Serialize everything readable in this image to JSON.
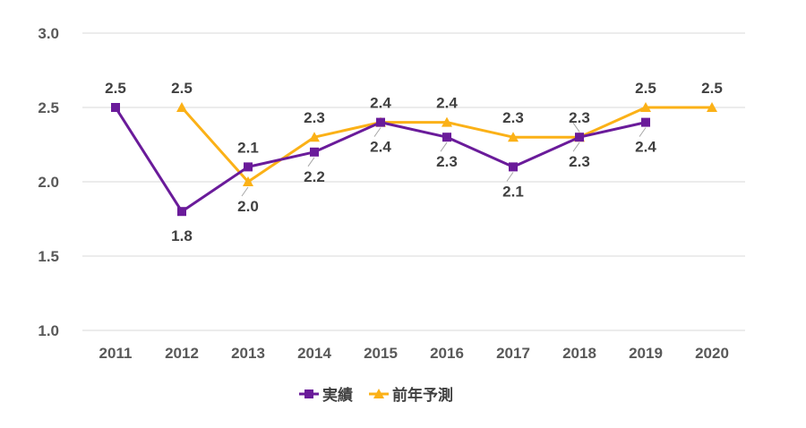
{
  "chart_data": {
    "type": "line",
    "title": "",
    "xlabel": "",
    "ylabel": "",
    "categories": [
      "2011",
      "2012",
      "2013",
      "2014",
      "2015",
      "2016",
      "2017",
      "2018",
      "2019",
      "2020"
    ],
    "ylim": [
      1.0,
      3.0
    ],
    "yticks": [
      "1.0",
      "1.5",
      "2.0",
      "2.5",
      "3.0"
    ],
    "grid": true,
    "legend_position": "bottom",
    "series": [
      {
        "name": "実績",
        "color": "#6a1b9a",
        "marker": "square",
        "values": [
          2.5,
          1.8,
          2.1,
          2.2,
          2.4,
          2.3,
          2.1,
          2.3,
          2.4,
          null
        ],
        "labels": [
          "2.5",
          "1.8",
          "2.1",
          "2.2",
          "2.4",
          "2.3",
          "2.1",
          "2.3",
          "2.4",
          null
        ]
      },
      {
        "name": "前年予測",
        "color": "#fbb117",
        "marker": "triangle",
        "values": [
          null,
          2.5,
          2.0,
          2.3,
          2.4,
          2.4,
          2.3,
          2.3,
          2.5,
          2.5
        ],
        "labels": [
          null,
          "2.5",
          "2.0",
          "2.3",
          "2.4",
          "2.4",
          "2.3",
          "2.3",
          "2.5",
          "2.5"
        ]
      }
    ]
  }
}
